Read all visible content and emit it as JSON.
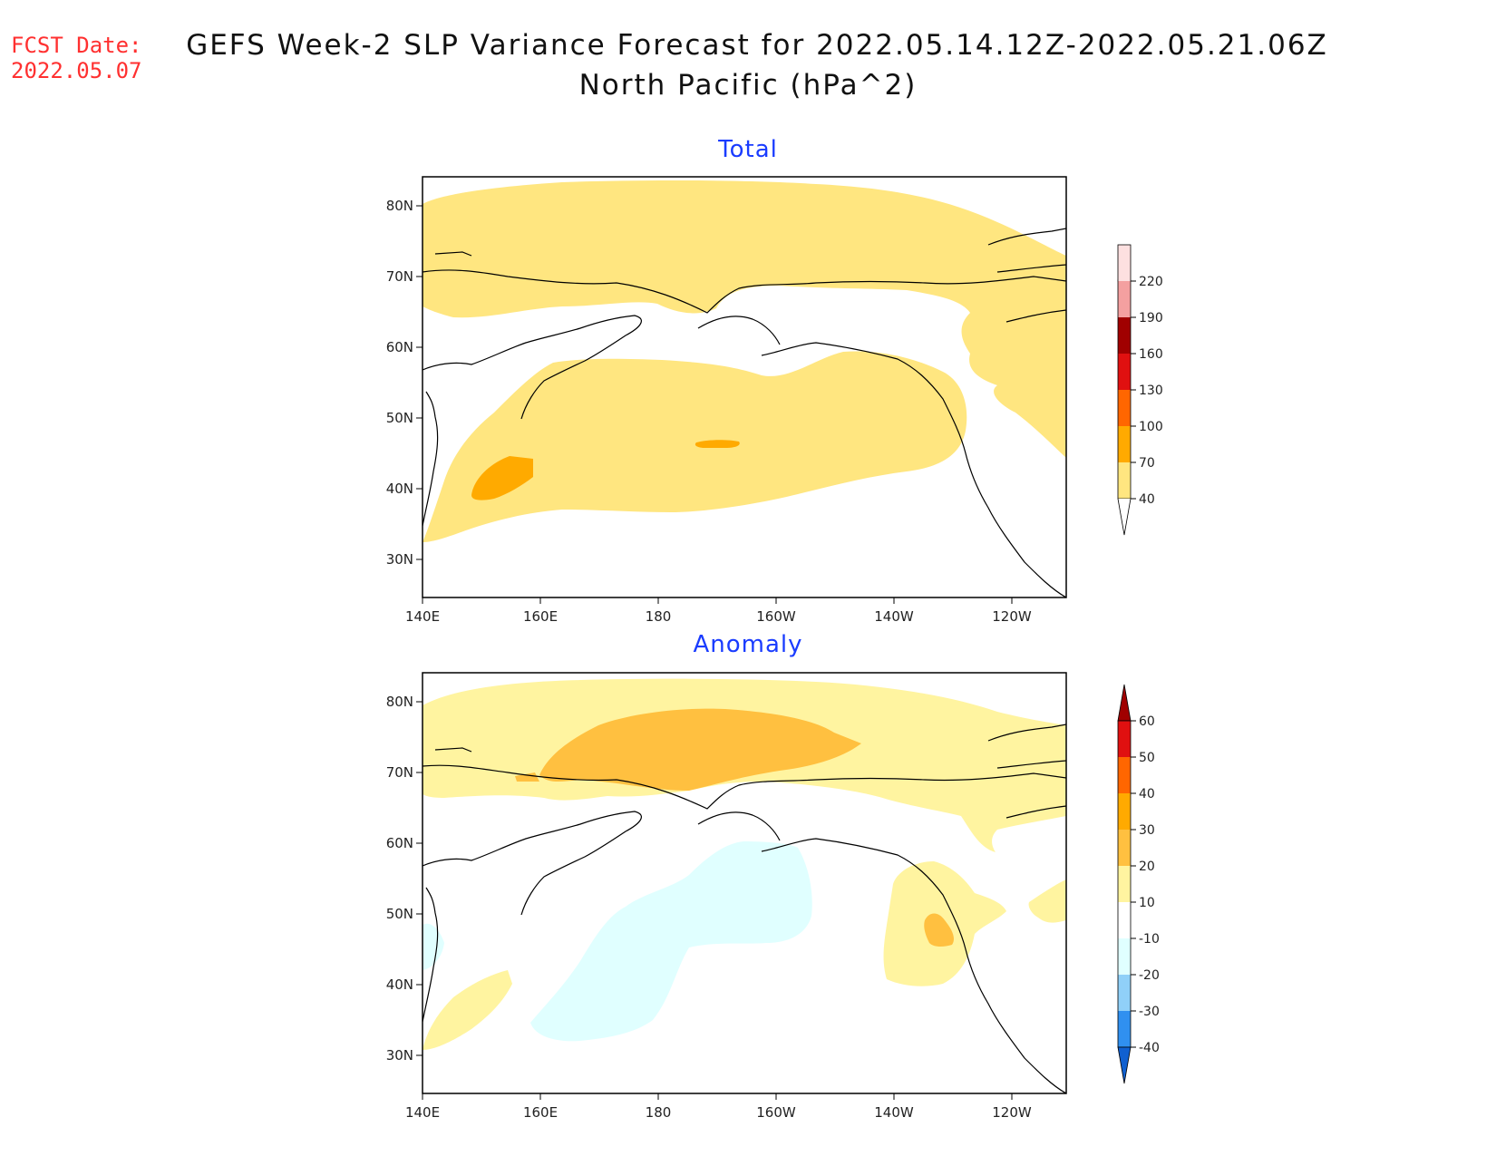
{
  "header": {
    "fcst_label": "FCST Date:",
    "fcst_date": "2022.05.07",
    "title_line1": "GEFS Week-2 SLP Variance Forecast for 2022.05.14.12Z-2022.05.21.06Z",
    "title_line2": "North Pacific (hPa^2)"
  },
  "axes": {
    "lat_labels": [
      "80N",
      "70N",
      "60N",
      "50N",
      "40N",
      "30N"
    ],
    "lon_labels": [
      "140E",
      "160E",
      "180",
      "160W",
      "140W",
      "120W"
    ]
  },
  "panels": [
    {
      "title": "Total",
      "colorbar": {
        "levels": [
          "40",
          "70",
          "100",
          "130",
          "160",
          "190",
          "220"
        ],
        "colors": [
          "#ffe680",
          "#ffaa00",
          "#ff6600",
          "#e01010",
          "#a00000",
          "#f4a0a0",
          "#fde0e0"
        ],
        "low_color": "#ffffff"
      }
    },
    {
      "title": "Anomaly",
      "colorbar": {
        "levels": [
          "60",
          "50",
          "40",
          "30",
          "20",
          "10",
          "-10",
          "-20",
          "-30",
          "-40"
        ],
        "colors": [
          "#a00000",
          "#e01010",
          "#ff6600",
          "#ffaa00",
          "#ffc040",
          "#fff4a0",
          "#ffffff",
          "#e0ffff",
          "#90d0f8",
          "#3090f0",
          "#1060d0"
        ]
      }
    }
  ],
  "chart_data": {
    "type": "heatmap",
    "region": "North Pacific",
    "units": "hPa^2",
    "lon_range": [
      "140E",
      "110W"
    ],
    "lat_range": [
      "25N",
      "85N"
    ],
    "total_shading": [
      {
        "region": "Arctic belt",
        "lat": "70-84N",
        "range": "40-70"
      },
      {
        "region": "North Pacific storm track",
        "lat": "35-60N",
        "range": "40-70"
      },
      {
        "region": "off Japan",
        "lat": "40-45N",
        "lon": "150-160E",
        "range": "70-100"
      },
      {
        "region": "central North Pacific",
        "lat": "47N",
        "lon": "170W",
        "range": "70-100"
      },
      {
        "region": "Canada",
        "lat": "45-70N",
        "lon": "110-130W",
        "range": "40-70"
      }
    ],
    "anomaly_shading": [
      {
        "region": "Arctic",
        "lat": "60-84N",
        "range": "10-20"
      },
      {
        "region": "Arctic core",
        "lat": "70-80N",
        "lon": "160E-150W",
        "range": "20-30"
      },
      {
        "region": "Bering Sea / North Pacific",
        "lat": "35-60N",
        "lon": "175E-155W",
        "range": "-10 to -20"
      },
      {
        "region": "Gulf of Alaska",
        "lat": "42-58N",
        "lon": "125-140W",
        "range": "10-20"
      },
      {
        "region": "Gulf of Alaska core",
        "lat": "48-51N",
        "lon": "130-133W",
        "range": "20-30"
      },
      {
        "region": "off Japan",
        "lat": "32-40N",
        "lon": "140-155E",
        "range": "10-20"
      }
    ]
  }
}
